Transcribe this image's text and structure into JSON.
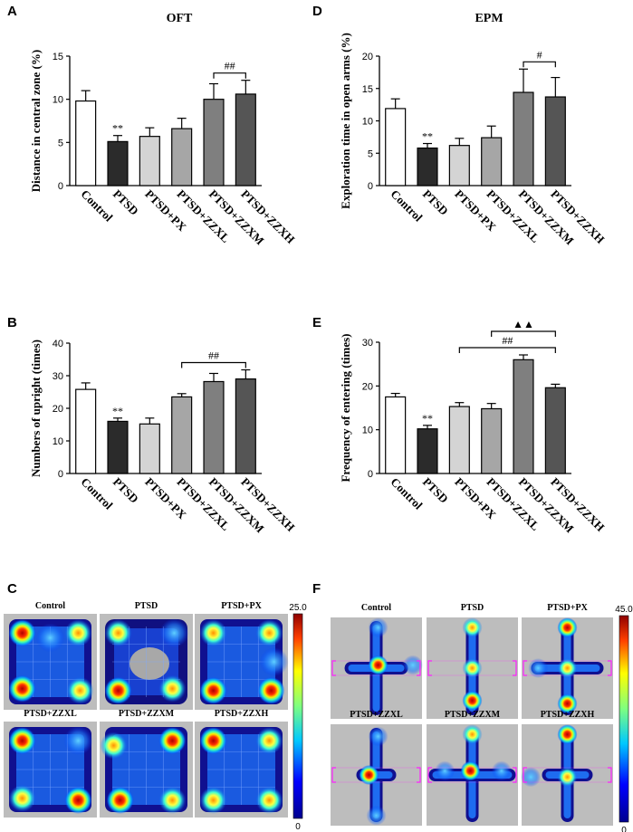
{
  "colors": {
    "bar_fills": [
      "#ffffff",
      "#2b2b2b",
      "#d4d4d4",
      "#a6a6a6",
      "#7f7f7f",
      "#555555"
    ],
    "heatmap_bg": "#bdbdbd",
    "heatmap_low": "#1010a0",
    "heatmap_high": "#c00000"
  },
  "panels": [
    {
      "letter": "A",
      "title": "OFT"
    },
    {
      "letter": "B",
      "title": ""
    },
    {
      "letter": "C",
      "title": ""
    },
    {
      "letter": "D",
      "title": "EPM"
    },
    {
      "letter": "E",
      "title": ""
    },
    {
      "letter": "F",
      "title": ""
    }
  ],
  "chart_data": [
    {
      "id": "A",
      "type": "bar",
      "title": "OFT",
      "ylabel": "Distance in central zone (%)",
      "categories": [
        "Control",
        "PTSD",
        "PTSD+PX",
        "PTSD+ZZXL",
        "PTSD+ZZXM",
        "PTSD+ZZXH"
      ],
      "values": [
        9.8,
        5.1,
        5.7,
        6.6,
        10.0,
        10.6
      ],
      "errors": [
        1.2,
        0.7,
        1.0,
        1.2,
        1.8,
        1.6
      ],
      "ylim": [
        0,
        15
      ],
      "yticks": [
        0,
        5,
        10,
        15
      ],
      "annotations": [
        {
          "bar": 1,
          "text": "**"
        }
      ],
      "brackets": [
        {
          "from": 4,
          "to": 5,
          "text": "##"
        }
      ]
    },
    {
      "id": "B",
      "type": "bar",
      "ylabel": "Numbers of upright  (times)",
      "categories": [
        "Control",
        "PTSD",
        "PTSD+PX",
        "PTSD+ZZXL",
        "PTSD+ZZXM",
        "PTSD+ZZXH"
      ],
      "values": [
        25.8,
        16.0,
        15.2,
        23.5,
        28.2,
        29.0
      ],
      "errors": [
        2.0,
        1.0,
        1.8,
        1.0,
        2.5,
        2.8
      ],
      "ylim": [
        0,
        40
      ],
      "yticks": [
        0,
        10,
        20,
        30,
        40
      ],
      "annotations": [
        {
          "bar": 1,
          "text": "**"
        }
      ],
      "brackets": [
        {
          "from": 3,
          "to": 5,
          "text": "##"
        }
      ]
    },
    {
      "id": "D",
      "type": "bar",
      "title": "EPM",
      "ylabel": "Exploration time in open arms (%)",
      "categories": [
        "Control",
        "PTSD",
        "PTSD+PX",
        "PTSD+ZZXL",
        "PTSD+ZZXM",
        "PTSD+ZZXH"
      ],
      "values": [
        11.9,
        5.8,
        6.2,
        7.4,
        14.4,
        13.7
      ],
      "errors": [
        1.5,
        0.7,
        1.1,
        1.8,
        3.6,
        3.0
      ],
      "ylim": [
        0,
        20
      ],
      "yticks": [
        0,
        5,
        10,
        15,
        20
      ],
      "annotations": [
        {
          "bar": 1,
          "text": "**"
        }
      ],
      "brackets": [
        {
          "from": 4,
          "to": 5,
          "text": "#"
        }
      ]
    },
    {
      "id": "E",
      "type": "bar",
      "ylabel": "Frequency of entering  (times)",
      "categories": [
        "Control",
        "PTSD",
        "PTSD+PX",
        "PTSD+ZZXL",
        "PTSD+ZZXM",
        "PTSD+ZZXH"
      ],
      "values": [
        17.5,
        10.2,
        15.3,
        14.8,
        26.0,
        19.6
      ],
      "errors": [
        0.8,
        0.8,
        0.9,
        1.2,
        1.1,
        0.8
      ],
      "ylim": [
        0,
        30
      ],
      "yticks": [
        0,
        10,
        20,
        30
      ],
      "annotations": [
        {
          "bar": 1,
          "text": "**"
        }
      ],
      "brackets": [
        {
          "from": 2,
          "to": 5,
          "text": "##"
        },
        {
          "from": 3,
          "to": 5,
          "text": "▲▲"
        }
      ]
    },
    {
      "id": "C",
      "type": "heatmap",
      "test": "OFT",
      "labels": [
        "Control",
        "PTSD",
        "PTSD+PX",
        "PTSD+ZZXL",
        "PTSD+ZZXM",
        "PTSD+ZZXH"
      ],
      "colorbar": {
        "min_label": "0",
        "max_label": "25.0",
        "min": 0,
        "max": 25
      }
    },
    {
      "id": "F",
      "type": "heatmap",
      "test": "EPM",
      "labels": [
        "Control",
        "PTSD",
        "PTSD+PX",
        "PTSD+ZZXL",
        "PTSD+ZZXM",
        "PTSD+ZZXH"
      ],
      "colorbar": {
        "min_label": "0",
        "max_label": "45.0",
        "min": 0,
        "max": 45
      }
    }
  ]
}
